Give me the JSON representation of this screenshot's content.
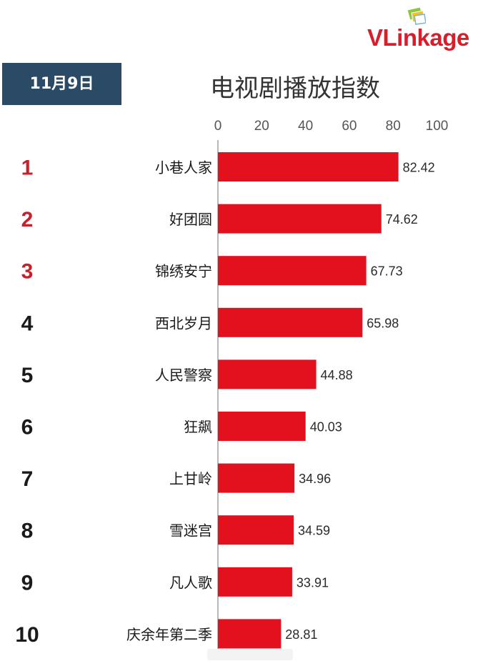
{
  "logo": {
    "text": "VLinkage"
  },
  "date_badge": "11月9日",
  "chart_data": {
    "type": "bar",
    "orientation": "horizontal",
    "title": "电视剧播放指数",
    "categories": [
      "小巷人家",
      "好团圆",
      "锦绣安宁",
      "西北岁月",
      "人民警察",
      "狂飙",
      "上甘岭",
      "雪迷宫",
      "凡人歌",
      "庆余年第二季"
    ],
    "ranks": [
      "1",
      "2",
      "3",
      "4",
      "5",
      "6",
      "7",
      "8",
      "9",
      "10"
    ],
    "values": [
      82.42,
      74.62,
      67.73,
      65.98,
      44.88,
      40.03,
      34.96,
      34.59,
      33.91,
      28.81
    ],
    "value_labels": [
      "82.42",
      "74.62",
      "67.73",
      "65.98",
      "44.88",
      "40.03",
      "34.96",
      "34.59",
      "33.91",
      "28.81"
    ],
    "x_ticks": [
      "0",
      "20",
      "40",
      "60",
      "80",
      "100"
    ],
    "xlim": [
      0,
      100
    ],
    "xlabel": "",
    "ylabel": "",
    "grid": false,
    "legend": "none"
  },
  "colors": {
    "bar": "#e3101e",
    "top_rank": "#c8202b",
    "rank": "#1a1a1a",
    "badge": "#2b4a66",
    "brand": "#d81e2c"
  }
}
